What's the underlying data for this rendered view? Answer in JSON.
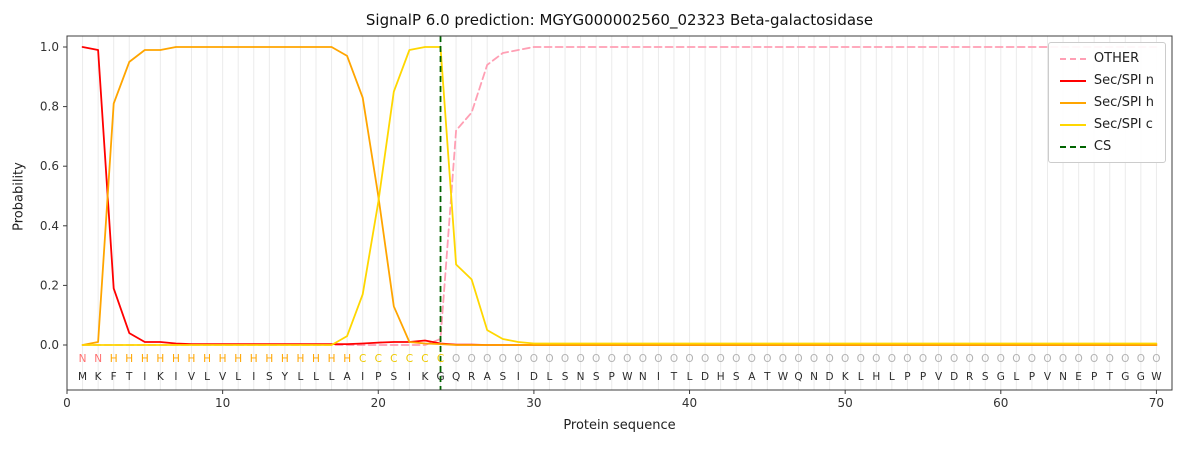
{
  "title": "SignalP 6.0 prediction: MGYG000002560_02323 Beta-galactosidase",
  "axes": {
    "xlabel": "Protein sequence",
    "ylabel": "Probability",
    "x_ticks": [
      0,
      10,
      20,
      30,
      40,
      50,
      60,
      70
    ],
    "y_ticks": [
      0.0,
      0.2,
      0.4,
      0.6,
      0.8,
      1.0
    ]
  },
  "legend": {
    "items": [
      {
        "label": "OTHER",
        "color": "#ff9fb4",
        "dash": true
      },
      {
        "label": "Sec/SPI n",
        "color": "#ff0000",
        "dash": false
      },
      {
        "label": "Sec/SPI h",
        "color": "#ffa500",
        "dash": false
      },
      {
        "label": "Sec/SPI c",
        "color": "#ffd700",
        "dash": false
      },
      {
        "label": "CS",
        "color": "#006400",
        "dash": true
      }
    ]
  },
  "chart_data": {
    "type": "line",
    "title": "SignalP 6.0 prediction: MGYG000002560_02323 Beta-galactosidase",
    "xlabel": "Protein sequence",
    "ylabel": "Probability",
    "xlim": [
      0,
      71
    ],
    "ylim": [
      -0.15,
      1.04
    ],
    "grid": "vertical-per-residue",
    "legend_position": "upper right",
    "sequence": "MKFTIKIVLVLISYLLLAIPSIKGQRASIDLSNSPWNITLDHSATWQNDKLHLPPVDRSGLPVNEPTGGW",
    "region_labels": "NNHHHHHHHHHHHHHHHHCCCCCCOOOOOOOOOOOOOOOOOOOOOOOOOOOOOOOOOOOOOOOOOOOO",
    "region_colors": {
      "N": "#ff7070",
      "H": "#ffa500",
      "C": "#eec900",
      "O": "#b3b3b3"
    },
    "sequence_color": "#2b2b2b",
    "cs_position": 24,
    "cs_color": "#006400",
    "series": [
      {
        "name": "OTHER",
        "color": "#ff9fb4",
        "style": "dashed",
        "values": [
          0,
          0,
          0,
          0,
          0,
          0,
          0,
          0,
          0,
          0,
          0,
          0,
          0,
          0,
          0,
          0,
          0,
          0,
          0,
          0,
          0,
          0,
          0,
          0.02,
          0.72,
          0.78,
          0.94,
          0.98,
          0.99,
          1,
          1,
          1,
          1,
          1,
          1,
          1,
          1,
          1,
          1,
          1,
          1,
          1,
          1,
          1,
          1,
          1,
          1,
          1,
          1,
          1,
          1,
          1,
          1,
          1,
          1,
          1,
          1,
          1,
          1,
          1,
          1,
          1,
          1,
          1,
          1,
          1,
          1,
          1,
          1,
          1
        ]
      },
      {
        "name": "Sec/SPI n",
        "color": "#ff0000",
        "style": "solid",
        "values": [
          1,
          0.99,
          0.19,
          0.04,
          0.01,
          0.01,
          0.005,
          0.003,
          0.003,
          0.003,
          0.003,
          0.003,
          0.003,
          0.003,
          0.003,
          0.003,
          0.003,
          0.003,
          0.005,
          0.008,
          0.01,
          0.01,
          0.015,
          0.005,
          0.001,
          0.001,
          0,
          0,
          0,
          0,
          0,
          0,
          0,
          0,
          0,
          0,
          0,
          0,
          0,
          0,
          0,
          0,
          0,
          0,
          0,
          0,
          0,
          0,
          0,
          0,
          0,
          0,
          0,
          0,
          0,
          0,
          0,
          0,
          0,
          0,
          0,
          0,
          0,
          0,
          0,
          0,
          0,
          0,
          0,
          0
        ]
      },
      {
        "name": "Sec/SPI h",
        "color": "#ffa500",
        "style": "solid",
        "values": [
          0,
          0.01,
          0.81,
          0.95,
          0.99,
          0.99,
          1,
          1,
          1,
          1,
          1,
          1,
          1,
          1,
          1,
          1,
          1,
          0.97,
          0.83,
          0.5,
          0.13,
          0.01,
          0.005,
          0.003,
          0,
          0,
          0,
          0,
          0,
          0,
          0,
          0,
          0,
          0,
          0,
          0,
          0,
          0,
          0,
          0,
          0,
          0,
          0,
          0,
          0,
          0,
          0,
          0,
          0,
          0,
          0,
          0,
          0,
          0,
          0,
          0,
          0,
          0,
          0,
          0,
          0,
          0,
          0,
          0,
          0,
          0,
          0,
          0,
          0,
          0
        ]
      },
      {
        "name": "Sec/SPI c",
        "color": "#ffd700",
        "style": "solid",
        "values": [
          0,
          0,
          0,
          0,
          0,
          0,
          0,
          0,
          0,
          0,
          0,
          0,
          0,
          0,
          0,
          0,
          0,
          0.03,
          0.17,
          0.48,
          0.85,
          0.99,
          1,
          1,
          0.27,
          0.22,
          0.05,
          0.02,
          0.01,
          0.005,
          0.005,
          0.005,
          0.005,
          0.005,
          0.005,
          0.005,
          0.005,
          0.005,
          0.005,
          0.005,
          0.005,
          0.005,
          0.005,
          0.005,
          0.005,
          0.005,
          0.005,
          0.005,
          0.005,
          0.005,
          0.005,
          0.005,
          0.005,
          0.005,
          0.005,
          0.005,
          0.005,
          0.005,
          0.005,
          0.005,
          0.005,
          0.005,
          0.005,
          0.005,
          0.005,
          0.005,
          0.005,
          0.005,
          0.005,
          0.005
        ]
      }
    ]
  }
}
